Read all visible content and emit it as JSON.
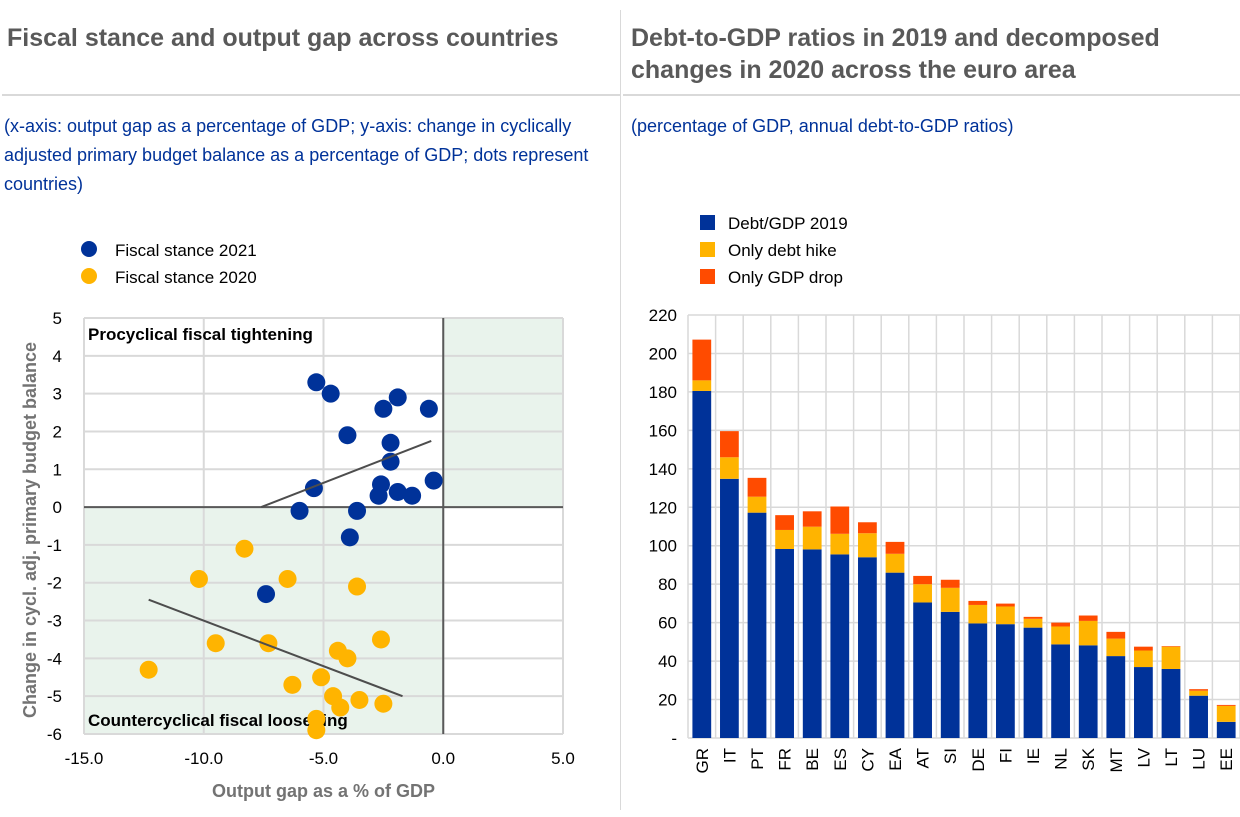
{
  "left": {
    "title": "Fiscal stance and output gap across countries",
    "subtitle": "(x-axis: output gap as a percentage of GDP; y-axis: change in cyclically adjusted primary budget balance as a percentage of GDP; dots represent countries)"
  },
  "right": {
    "title_line1": "Debt-to-GDP ratios in 2019 and decomposed",
    "title_line2": "changes in 2020 across the euro area",
    "subtitle": "(percentage of GDP, annual debt-to-GDP ratios)"
  },
  "chart_data": [
    {
      "type": "scatter",
      "title": "Fiscal stance and output gap across countries",
      "xlabel": "Output gap as a % of GDP",
      "ylabel": "Change in cycl.  adj. primary budget balance",
      "xlim": [
        -15,
        5
      ],
      "ylim": [
        -6,
        5
      ],
      "xticks": [
        -15,
        -10,
        -5,
        0,
        5
      ],
      "xtick_labels": [
        "-15.0",
        "-10.0",
        "-5.0",
        "0.0",
        "5.0"
      ],
      "yticks": [
        5,
        4,
        3,
        2,
        1,
        0,
        -1,
        -2,
        -3,
        -4,
        -5,
        -6
      ],
      "ytick_labels": [
        "5",
        "4",
        "3",
        "2",
        "1",
        "0",
        "-1",
        "-2",
        "-3",
        "-4",
        "-5",
        "-6"
      ],
      "grid": true,
      "legend_position": "top-left",
      "annotations": [
        "Procyclical  fiscal  tightening",
        "Countercyclical  fiscal  loosening"
      ],
      "shaded_quadrants": [
        "x<0,y<0",
        "x>0,y>0"
      ],
      "shade_color": "#e9f3ec",
      "series": [
        {
          "name": "Fiscal stance  2021",
          "color": "#003299",
          "points": [
            [
              -5.3,
              3.3
            ],
            [
              -4.7,
              3.0
            ],
            [
              -1.9,
              2.9
            ],
            [
              -2.5,
              2.6
            ],
            [
              -0.6,
              2.6
            ],
            [
              -4.0,
              1.9
            ],
            [
              -2.2,
              1.7
            ],
            [
              -2.2,
              1.2
            ],
            [
              -5.4,
              0.5
            ],
            [
              -2.6,
              0.6
            ],
            [
              -2.7,
              0.3
            ],
            [
              -1.9,
              0.4
            ],
            [
              -1.3,
              0.3
            ],
            [
              -0.4,
              0.7
            ],
            [
              -6.0,
              -0.1
            ],
            [
              -3.6,
              -0.1
            ],
            [
              -3.9,
              -0.8
            ],
            [
              -7.4,
              -2.3
            ]
          ],
          "trend": [
            [
              -7.6,
              0.0
            ],
            [
              -0.5,
              1.75
            ]
          ]
        },
        {
          "name": "Fiscal stance  2020",
          "color": "#ffb400",
          "points": [
            [
              -8.3,
              -1.1
            ],
            [
              -10.2,
              -1.9
            ],
            [
              -6.5,
              -1.9
            ],
            [
              -3.6,
              -2.1
            ],
            [
              -9.5,
              -3.6
            ],
            [
              -7.3,
              -3.6
            ],
            [
              -12.3,
              -4.3
            ],
            [
              -2.6,
              -3.5
            ],
            [
              -4.4,
              -3.8
            ],
            [
              -4.0,
              -4.0
            ],
            [
              -5.1,
              -4.5
            ],
            [
              -6.3,
              -4.7
            ],
            [
              -4.6,
              -5.0
            ],
            [
              -4.3,
              -5.3
            ],
            [
              -3.5,
              -5.1
            ],
            [
              -2.5,
              -5.2
            ],
            [
              -5.3,
              -5.6
            ],
            [
              -5.3,
              -5.9
            ]
          ],
          "trend": [
            [
              -12.3,
              -2.45
            ],
            [
              -1.7,
              -5.0
            ]
          ]
        }
      ]
    },
    {
      "type": "bar",
      "stacked": true,
      "title": "Debt-to-GDP ratios in 2019 and decomposed changes in 2020 across the euro area",
      "xlabel": "",
      "ylabel": "",
      "ylim": [
        0,
        220
      ],
      "yticks": [
        0,
        20,
        40,
        60,
        80,
        100,
        120,
        140,
        160,
        180,
        200,
        220
      ],
      "ytick_labels": [
        "-",
        "20",
        "40",
        "60",
        "80",
        "100",
        "120",
        "140",
        "160",
        "180",
        "200",
        "220"
      ],
      "grid": true,
      "legend_position": "top-left",
      "categories": [
        "GR",
        "IT",
        "PT",
        "FR",
        "BE",
        "ES",
        "CY",
        "EA",
        "AT",
        "SI",
        "DE",
        "FI",
        "IE",
        "NL",
        "SK",
        "MT",
        "LV",
        "LT",
        "LU",
        "EE"
      ],
      "series": [
        {
          "name": "Debt/GDP 2019",
          "color": "#003299",
          "values": [
            180.5,
            134.8,
            117.2,
            98.3,
            98.1,
            95.5,
            94.0,
            86.0,
            70.5,
            65.6,
            59.6,
            59.2,
            57.4,
            48.7,
            48.2,
            42.6,
            36.9,
            35.9,
            22.0,
            8.4
          ]
        },
        {
          "name": "Only debt hike",
          "color": "#ffb400",
          "values": [
            5.5,
            11.2,
            8.3,
            9.9,
            11.8,
            10.7,
            12.5,
            9.8,
            9.5,
            12.5,
            9.6,
            9.2,
            4.6,
            9.3,
            12.7,
            9.1,
            8.6,
            11.6,
            2.6,
            8.3
          ]
        },
        {
          "name": "Only GDP drop",
          "color": "#ff4b00",
          "values": [
            21.2,
            13.6,
            9.8,
            7.7,
            8.0,
            14.2,
            5.7,
            6.2,
            4.3,
            4.2,
            2.1,
            1.5,
            1.0,
            2.0,
            2.8,
            3.5,
            2.0,
            0.3,
            0.8,
            0.5
          ]
        }
      ]
    }
  ]
}
